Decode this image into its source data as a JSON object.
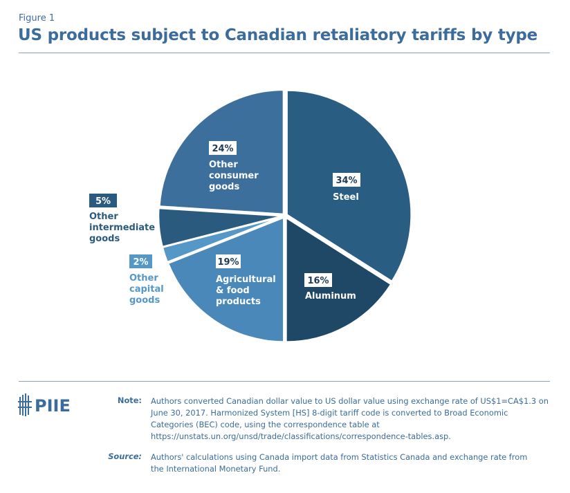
{
  "figure_label": "Figure 1",
  "title": "US products subject to Canadian retaliatory tariffs by type",
  "chart_data": {
    "type": "pie",
    "title": "US products subject to Canadian retaliatory tariffs by type",
    "start": "12 o'clock, clockwise",
    "slices": [
      {
        "label": "Steel",
        "value": 34,
        "value_label": "34%",
        "color": "#2a5d82"
      },
      {
        "label": "Aluminum",
        "value": 16,
        "value_label": "16%",
        "color": "#1f4866"
      },
      {
        "label": "Agricultural & food products",
        "value": 19,
        "value_label": "19%",
        "color": "#4a88b9"
      },
      {
        "label": "Other capital goods",
        "value": 2,
        "value_label": "2%",
        "color": "#5597c6"
      },
      {
        "label": "Other intermediate goods",
        "value": 5,
        "value_label": "5%",
        "color": "#2a5b7e"
      },
      {
        "label": "Other consumer goods",
        "value": 24,
        "value_label": "24%",
        "color": "#3d6f9d"
      }
    ]
  },
  "logo": "PIIE",
  "note_label": "Note:",
  "note": "Authors converted Canadian dollar value to US dollar value using exchange rate of US$1=CA$1.3 on June 30, 2017. Harmonized System [HS] 8-digit tariff code is converted to Broad Economic Categories (BEC) code, using the correspondence table at https://unstats.un.org/unsd/trade/classifications/correspondence-tables.asp.",
  "source_label": "Source:",
  "source": "Authors' calculations using Canada import data from Statistics Canada and exchange rate from the International Monetary Fund."
}
